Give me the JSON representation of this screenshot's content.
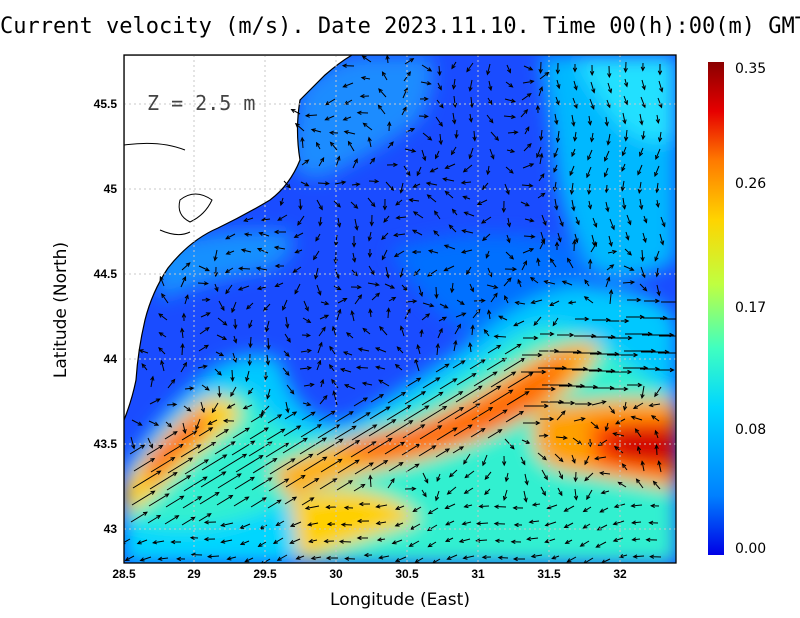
{
  "title": "Current velocity (m/s). Date 2023.11.10. Time 00(h):00(m) GMT",
  "depth_label": "Z = 2.5 m",
  "xlabel": "Longitude (East)",
  "ylabel": "Latitude (North)",
  "xticks": [
    "28.5",
    "29",
    "29.5",
    "30",
    "30.5",
    "31",
    "31.5",
    "32"
  ],
  "yticks": [
    "43",
    "43.5",
    "44",
    "44.5",
    "45",
    "45.5"
  ],
  "colorbar": {
    "ticks": [
      "0.35",
      "0.26",
      "0.17",
      "0.08",
      "0.00"
    ],
    "colors": [
      "#0000e6",
      "#0080ff",
      "#00d6ff",
      "#40ffc0",
      "#c0ff40",
      "#ffd400",
      "#ff7a00",
      "#e60000",
      "#8a0000"
    ]
  },
  "chart_data": {
    "type": "heatmap",
    "title": "Current velocity (m/s). Date 2023.11.10. Time 00(h):00(m) GMT",
    "xlabel": "Longitude (East)",
    "ylabel": "Latitude (North)",
    "xlim": [
      28.5,
      32.4
    ],
    "ylim": [
      42.8,
      45.8
    ],
    "clim": [
      0.0,
      0.35
    ],
    "grid": true,
    "depth_m": 2.5
  }
}
